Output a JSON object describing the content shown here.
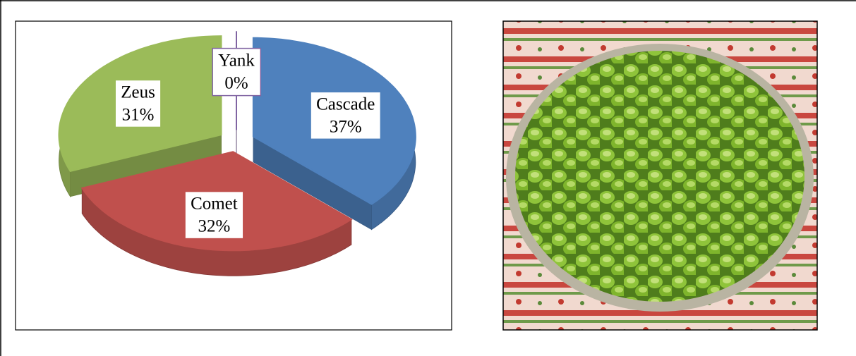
{
  "chart_data": {
    "type": "pie",
    "categories": [
      "Cascade",
      "Comet",
      "Zeus",
      "Yank"
    ],
    "values": [
      37,
      32,
      31,
      0
    ],
    "value_labels": [
      "37%",
      "32%",
      "31%",
      "0%"
    ],
    "colors": [
      "#4f81bd",
      "#c0504d",
      "#9bbb59",
      "#8064a2"
    ],
    "exploded": true,
    "three_d": true
  }
}
